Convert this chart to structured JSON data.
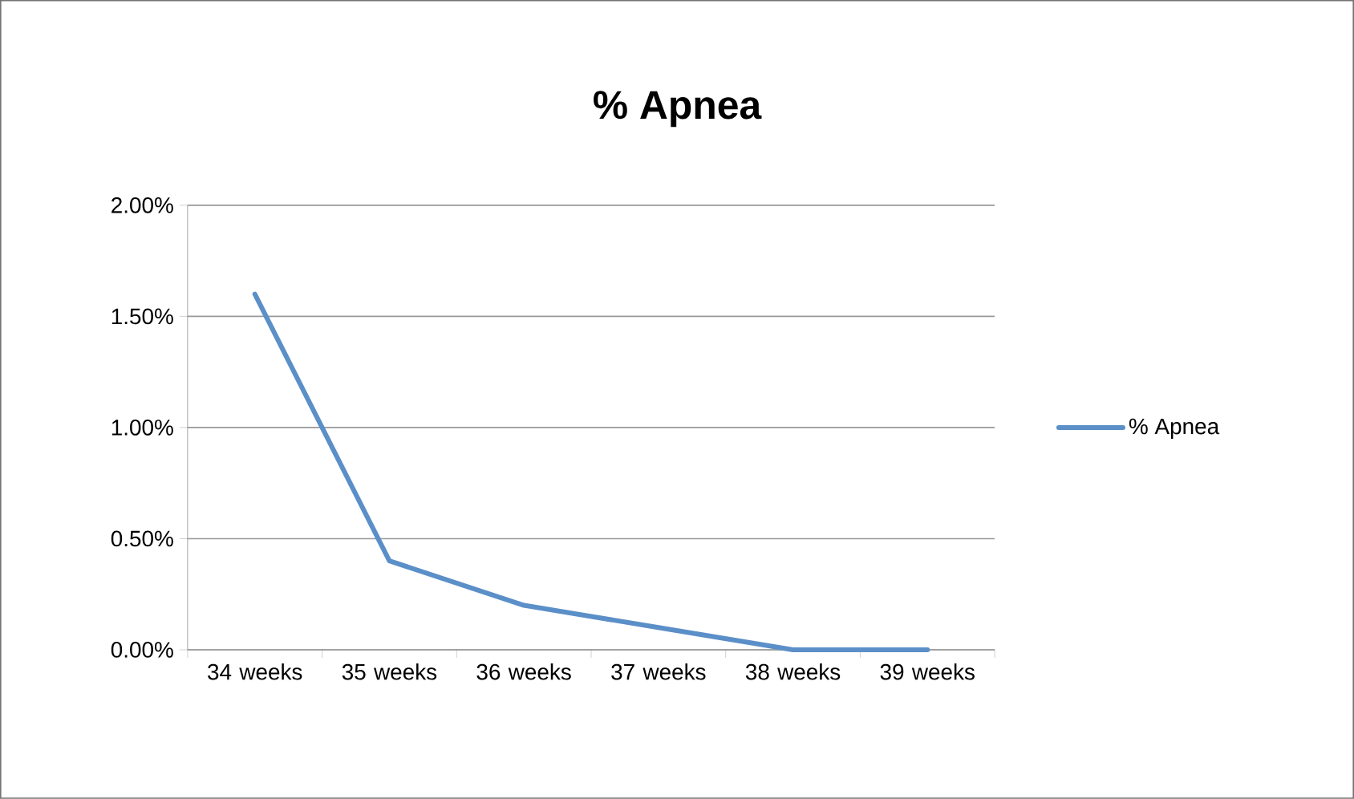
{
  "chart_data": {
    "type": "line",
    "title": "% Apnea",
    "categories": [
      "34 weeks",
      "35 weeks",
      "36 weeks",
      "37 weeks",
      "38 weeks",
      "39 weeks"
    ],
    "series": [
      {
        "name": "% Apnea",
        "color": "#5b8fc8",
        "values": [
          1.6,
          0.4,
          0.2,
          0.1,
          0,
          0
        ]
      }
    ],
    "ylim": [
      0,
      2
    ],
    "yticks": [
      {
        "value": 0,
        "label": "0.00%"
      },
      {
        "value": 0.5,
        "label": "0.50%"
      },
      {
        "value": 1,
        "label": "1.00%"
      },
      {
        "value": 1.5,
        "label": "1.50%"
      },
      {
        "value": 2,
        "label": "2.00%"
      }
    ],
    "grid": "y",
    "legend": "right"
  }
}
